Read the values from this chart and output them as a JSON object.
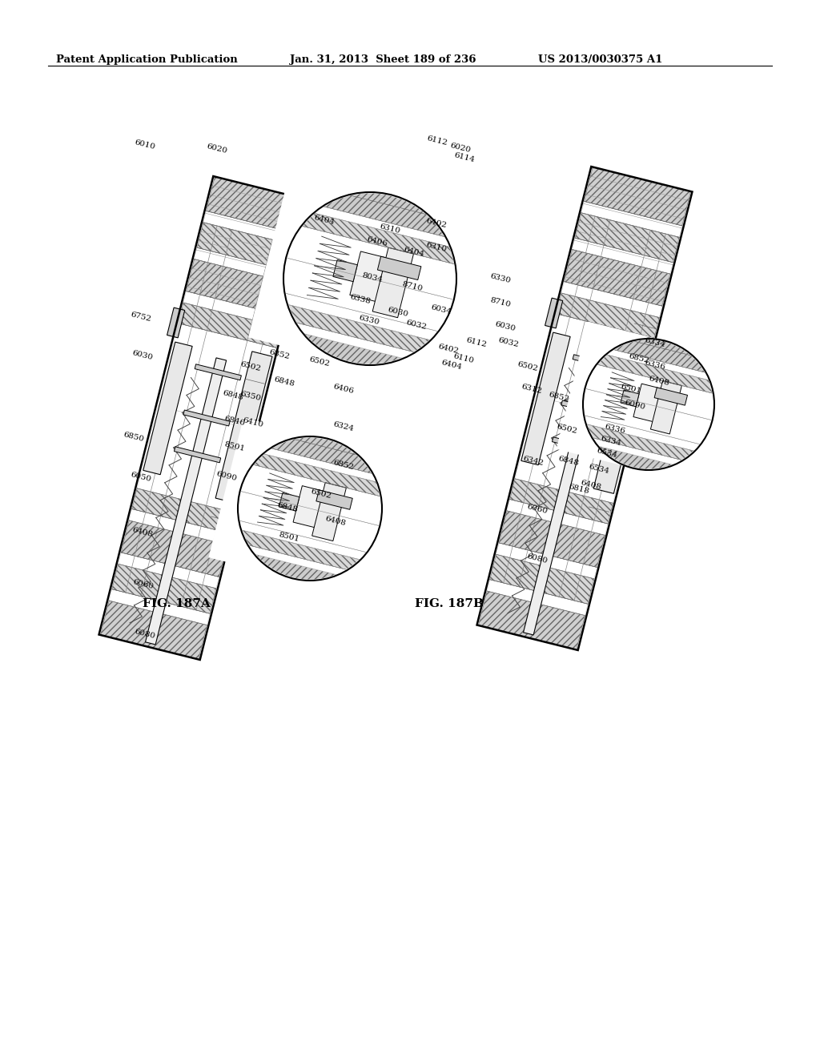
{
  "header_left": "Patent Application Publication",
  "header_center": "Jan. 31, 2013  Sheet 189 of 236",
  "header_right": "US 2013/0030375 A1",
  "background_color": "#ffffff",
  "fig_label_A": "FIG. 187A",
  "fig_label_B": "FIG. 187B",
  "page_width": 10.24,
  "page_height": 13.2
}
